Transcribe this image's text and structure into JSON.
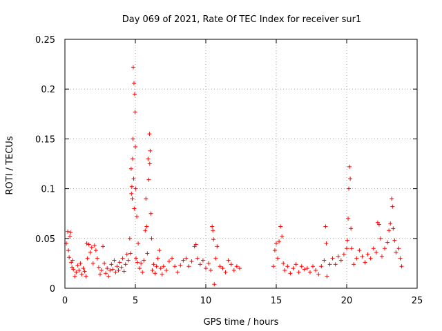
{
  "chart_data": {
    "type": "scatter",
    "title": "Day 069 of 2021, Rate Of TEC Index for receiver sur1",
    "xlabel": "GPS time / hours",
    "ylabel": "ROTI / TECUs",
    "xlim": [
      0,
      25
    ],
    "ylim": [
      0,
      0.25
    ],
    "x_ticks": [
      "0",
      "5",
      "10",
      "15",
      "20",
      "25"
    ],
    "y_ticks": [
      "0",
      "0.05",
      "0.1",
      "0.15",
      "0.2",
      "0.25"
    ],
    "grid": true,
    "marker": "+",
    "series_color": "#ff0000",
    "series": [
      {
        "name": "ROTI sur1",
        "points": [
          [
            0.1,
            0.045
          ],
          [
            0.2,
            0.057
          ],
          [
            0.25,
            0.038
          ],
          [
            0.3,
            0.031
          ],
          [
            0.35,
            0.052
          ],
          [
            0.4,
            0.056
          ],
          [
            0.45,
            0.026
          ],
          [
            0.5,
            0.021
          ],
          [
            0.55,
            0.028
          ],
          [
            0.6,
            0.019
          ],
          [
            0.7,
            0.012
          ],
          [
            0.8,
            0.016
          ],
          [
            0.9,
            0.023
          ],
          [
            1.0,
            0.018
          ],
          [
            1.1,
            0.025
          ],
          [
            1.2,
            0.014
          ],
          [
            1.3,
            0.02
          ],
          [
            1.4,
            0.017
          ],
          [
            1.5,
            0.012
          ],
          [
            1.55,
            0.045
          ],
          [
            1.6,
            0.03
          ],
          [
            1.7,
            0.044
          ],
          [
            1.8,
            0.036
          ],
          [
            1.9,
            0.041
          ],
          [
            2.0,
            0.025
          ],
          [
            2.1,
            0.043
          ],
          [
            2.2,
            0.038
          ],
          [
            2.3,
            0.03
          ],
          [
            2.4,
            0.021
          ],
          [
            2.5,
            0.014
          ],
          [
            2.6,
            0.018
          ],
          [
            2.7,
            0.042
          ],
          [
            2.8,
            0.025
          ],
          [
            2.9,
            0.015
          ],
          [
            3.0,
            0.02
          ],
          [
            3.1,
            0.012
          ],
          [
            3.2,
            0.018
          ],
          [
            3.3,
            0.024
          ],
          [
            3.4,
            0.019
          ],
          [
            3.5,
            0.028
          ],
          [
            3.6,
            0.016
          ],
          [
            3.7,
            0.022
          ],
          [
            3.8,
            0.018
          ],
          [
            3.9,
            0.026
          ],
          [
            4.0,
            0.021
          ],
          [
            4.1,
            0.03
          ],
          [
            4.2,
            0.017
          ],
          [
            4.3,
            0.024
          ],
          [
            4.4,
            0.034
          ],
          [
            4.5,
            0.028
          ],
          [
            4.6,
            0.05
          ],
          [
            4.65,
            0.035
          ],
          [
            4.7,
            0.12
          ],
          [
            4.72,
            0.095
          ],
          [
            4.75,
            0.102
          ],
          [
            4.78,
            0.09
          ],
          [
            4.8,
            0.13
          ],
          [
            4.82,
            0.15
          ],
          [
            4.85,
            0.222
          ],
          [
            4.88,
            0.11
          ],
          [
            4.9,
            0.206
          ],
          [
            4.92,
            0.08
          ],
          [
            4.95,
            0.195
          ],
          [
            4.98,
            0.177
          ],
          [
            5.0,
            0.142
          ],
          [
            5.02,
            0.1
          ],
          [
            5.05,
            0.03
          ],
          [
            5.1,
            0.072
          ],
          [
            5.15,
            0.026
          ],
          [
            5.2,
            0.045
          ],
          [
            5.3,
            0.02
          ],
          [
            5.4,
            0.025
          ],
          [
            5.5,
            0.016
          ],
          [
            5.6,
            0.028
          ],
          [
            5.7,
            0.058
          ],
          [
            5.75,
            0.09
          ],
          [
            5.8,
            0.062
          ],
          [
            5.85,
            0.035
          ],
          [
            5.9,
            0.13
          ],
          [
            5.95,
            0.109
          ],
          [
            6.0,
            0.155
          ],
          [
            6.02,
            0.125
          ],
          [
            6.05,
            0.138
          ],
          [
            6.1,
            0.075
          ],
          [
            6.15,
            0.05
          ],
          [
            6.2,
            0.018
          ],
          [
            6.3,
            0.024
          ],
          [
            6.4,
            0.015
          ],
          [
            6.5,
            0.022
          ],
          [
            6.6,
            0.03
          ],
          [
            6.7,
            0.038
          ],
          [
            6.8,
            0.02
          ],
          [
            6.9,
            0.014
          ],
          [
            7.0,
            0.022
          ],
          [
            7.2,
            0.018
          ],
          [
            7.4,
            0.027
          ],
          [
            7.6,
            0.03
          ],
          [
            7.8,
            0.022
          ],
          [
            8.0,
            0.016
          ],
          [
            8.2,
            0.023
          ],
          [
            8.4,
            0.028
          ],
          [
            8.6,
            0.03
          ],
          [
            8.8,
            0.022
          ],
          [
            9.0,
            0.027
          ],
          [
            9.2,
            0.042
          ],
          [
            9.3,
            0.044
          ],
          [
            9.4,
            0.03
          ],
          [
            9.6,
            0.024
          ],
          [
            9.8,
            0.028
          ],
          [
            10.0,
            0.02
          ],
          [
            10.2,
            0.025
          ],
          [
            10.35,
            0.018
          ],
          [
            10.45,
            0.062
          ],
          [
            10.5,
            0.058
          ],
          [
            10.55,
            0.049
          ],
          [
            10.6,
            0.004
          ],
          [
            10.7,
            0.03
          ],
          [
            10.8,
            0.042
          ],
          [
            11.0,
            0.022
          ],
          [
            11.2,
            0.02
          ],
          [
            11.4,
            0.016
          ],
          [
            11.6,
            0.028
          ],
          [
            11.8,
            0.024
          ],
          [
            12.0,
            0.018
          ],
          [
            12.2,
            0.022
          ],
          [
            12.4,
            0.02
          ],
          [
            14.8,
            0.022
          ],
          [
            14.9,
            0.038
          ],
          [
            15.0,
            0.045
          ],
          [
            15.1,
            0.03
          ],
          [
            15.2,
            0.047
          ],
          [
            15.3,
            0.062
          ],
          [
            15.4,
            0.052
          ],
          [
            15.5,
            0.025
          ],
          [
            15.6,
            0.018
          ],
          [
            15.8,
            0.022
          ],
          [
            16.0,
            0.015
          ],
          [
            16.2,
            0.02
          ],
          [
            16.4,
            0.024
          ],
          [
            16.6,
            0.016
          ],
          [
            16.8,
            0.022
          ],
          [
            17.0,
            0.019
          ],
          [
            17.2,
            0.02
          ],
          [
            17.4,
            0.016
          ],
          [
            17.6,
            0.022
          ],
          [
            17.8,
            0.018
          ],
          [
            18.0,
            0.014
          ],
          [
            18.2,
            0.022
          ],
          [
            18.4,
            0.028
          ],
          [
            18.5,
            0.062
          ],
          [
            18.55,
            0.045
          ],
          [
            18.6,
            0.012
          ],
          [
            18.8,
            0.024
          ],
          [
            19.0,
            0.03
          ],
          [
            19.2,
            0.024
          ],
          [
            19.4,
            0.032
          ],
          [
            19.6,
            0.028
          ],
          [
            19.8,
            0.034
          ],
          [
            20.0,
            0.04
          ],
          [
            20.05,
            0.048
          ],
          [
            20.1,
            0.07
          ],
          [
            20.15,
            0.1
          ],
          [
            20.2,
            0.122
          ],
          [
            20.25,
            0.11
          ],
          [
            20.3,
            0.06
          ],
          [
            20.35,
            0.04
          ],
          [
            20.5,
            0.024
          ],
          [
            20.7,
            0.03
          ],
          [
            20.9,
            0.038
          ],
          [
            21.1,
            0.032
          ],
          [
            21.3,
            0.026
          ],
          [
            21.5,
            0.034
          ],
          [
            21.7,
            0.03
          ],
          [
            21.9,
            0.04
          ],
          [
            22.1,
            0.036
          ],
          [
            22.2,
            0.066
          ],
          [
            22.3,
            0.064
          ],
          [
            22.4,
            0.05
          ],
          [
            22.5,
            0.032
          ],
          [
            22.7,
            0.04
          ],
          [
            22.9,
            0.046
          ],
          [
            23.0,
            0.058
          ],
          [
            23.1,
            0.065
          ],
          [
            23.2,
            0.09
          ],
          [
            23.25,
            0.082
          ],
          [
            23.3,
            0.06
          ],
          [
            23.4,
            0.048
          ],
          [
            23.5,
            0.036
          ],
          [
            23.7,
            0.04
          ],
          [
            23.8,
            0.03
          ],
          [
            23.9,
            0.022
          ]
        ]
      }
    ]
  }
}
